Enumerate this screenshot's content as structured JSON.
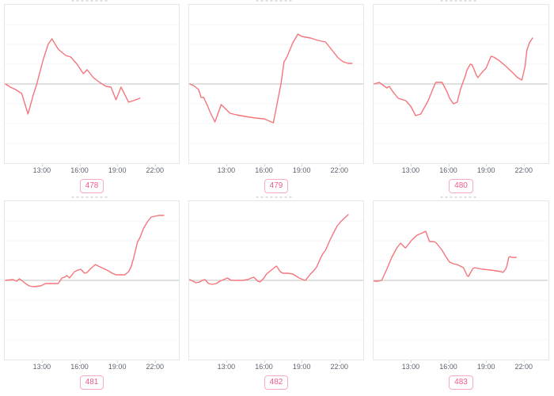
{
  "axis": {
    "tick_labels": [
      "13:00",
      "16:00",
      "19:00",
      "22:00"
    ],
    "tick_hours": [
      13,
      16,
      19,
      22
    ]
  },
  "style": {
    "background": "#ffffff",
    "line_color": "#f4757b",
    "zero_line_color": "#c2c2c2",
    "grid_color": "#f4f4f4",
    "border_color": "#e7e7e7",
    "tick_color": "#d6d6d6",
    "axis_label_color": "#5c6370",
    "badge_text_color": "#ee5a8b",
    "badge_border_color": "#f6abc5"
  },
  "chart_data": [
    {
      "type": "line",
      "label": "478",
      "legend": "none",
      "grid": "faint-horizontal",
      "baseline": 0,
      "xlim_hours": [
        10.05,
        23.9
      ],
      "ylim": [
        -100,
        100
      ],
      "xticks": [
        "13:00",
        "16:00",
        "19:00",
        "22:00"
      ],
      "y_scale": "relative (no y-axis labels visible)",
      "points": [
        [
          10.1,
          0
        ],
        [
          10.5,
          -4
        ],
        [
          10.9,
          -7
        ],
        [
          11.0,
          -8
        ],
        [
          11.4,
          -12
        ],
        [
          11.9,
          -38
        ],
        [
          12.3,
          -15
        ],
        [
          12.6,
          0
        ],
        [
          13.1,
          30
        ],
        [
          13.5,
          50
        ],
        [
          13.8,
          57
        ],
        [
          14.3,
          44
        ],
        [
          14.9,
          36
        ],
        [
          15.3,
          34
        ],
        [
          15.8,
          25
        ],
        [
          16.3,
          13
        ],
        [
          16.6,
          18
        ],
        [
          17.1,
          8
        ],
        [
          17.6,
          2
        ],
        [
          18.1,
          -3
        ],
        [
          18.5,
          -4
        ],
        [
          18.9,
          -20
        ],
        [
          19.3,
          -4
        ],
        [
          19.9,
          -23
        ],
        [
          20.3,
          -21
        ],
        [
          20.8,
          -18
        ]
      ]
    },
    {
      "type": "line",
      "label": "479",
      "legend": "none",
      "grid": "faint-horizontal",
      "baseline": 0,
      "xlim_hours": [
        10.05,
        23.9
      ],
      "ylim": [
        -100,
        100
      ],
      "xticks": [
        "13:00",
        "16:00",
        "19:00",
        "22:00"
      ],
      "y_scale": "relative (no y-axis labels visible)",
      "points": [
        [
          10.1,
          0
        ],
        [
          10.4,
          -2
        ],
        [
          10.8,
          -7
        ],
        [
          11.0,
          -17
        ],
        [
          11.2,
          -17
        ],
        [
          11.5,
          -27
        ],
        [
          11.7,
          -35
        ],
        [
          12.1,
          -48
        ],
        [
          12.6,
          -26
        ],
        [
          13.3,
          -37
        ],
        [
          13.8,
          -39
        ],
        [
          14.5,
          -41
        ],
        [
          15.3,
          -43
        ],
        [
          16.0,
          -44
        ],
        [
          16.75,
          -49
        ],
        [
          17.35,
          0
        ],
        [
          17.6,
          28
        ],
        [
          17.8,
          33
        ],
        [
          18.3,
          52
        ],
        [
          18.7,
          63
        ],
        [
          19.0,
          60
        ],
        [
          19.7,
          58
        ],
        [
          20.3,
          55
        ],
        [
          20.9,
          53
        ],
        [
          21.4,
          43
        ],
        [
          21.9,
          33
        ],
        [
          22.3,
          28
        ],
        [
          22.7,
          26
        ],
        [
          23.0,
          26
        ]
      ]
    },
    {
      "type": "line",
      "label": "480",
      "legend": "none",
      "grid": "faint-horizontal",
      "baseline": 0,
      "xlim_hours": [
        10.05,
        23.9
      ],
      "ylim": [
        -100,
        100
      ],
      "xticks": [
        "13:00",
        "16:00",
        "19:00",
        "22:00"
      ],
      "y_scale": "relative (no y-axis labels visible)",
      "points": [
        [
          10.1,
          0
        ],
        [
          10.5,
          2
        ],
        [
          11.1,
          -5
        ],
        [
          11.3,
          -3
        ],
        [
          11.6,
          -10
        ],
        [
          12.0,
          -18
        ],
        [
          12.6,
          -21
        ],
        [
          13.0,
          -28
        ],
        [
          13.4,
          -40
        ],
        [
          13.8,
          -38
        ],
        [
          14.4,
          -21
        ],
        [
          14.8,
          -5
        ],
        [
          15.0,
          2
        ],
        [
          15.5,
          2
        ],
        [
          15.9,
          -10
        ],
        [
          16.1,
          -18
        ],
        [
          16.4,
          -25
        ],
        [
          16.7,
          -23
        ],
        [
          17.0,
          -5
        ],
        [
          17.3,
          8
        ],
        [
          17.5,
          18
        ],
        [
          17.75,
          25
        ],
        [
          17.9,
          24
        ],
        [
          18.2,
          12
        ],
        [
          18.35,
          8
        ],
        [
          18.7,
          15
        ],
        [
          19.0,
          20
        ],
        [
          19.4,
          35
        ],
        [
          19.6,
          34
        ],
        [
          20.0,
          30
        ],
        [
          20.6,
          22
        ],
        [
          21.2,
          13
        ],
        [
          21.5,
          8
        ],
        [
          21.85,
          5
        ],
        [
          22.1,
          22
        ],
        [
          22.25,
          43
        ],
        [
          22.45,
          52
        ],
        [
          22.7,
          58
        ]
      ]
    },
    {
      "type": "line",
      "label": "481",
      "legend": "none",
      "grid": "faint-horizontal",
      "baseline": 0,
      "xlim_hours": [
        10.05,
        23.9
      ],
      "ylim": [
        -100,
        100
      ],
      "xticks": [
        "13:00",
        "16:00",
        "19:00",
        "22:00"
      ],
      "y_scale": "relative (no y-axis labels visible)",
      "points": [
        [
          10.1,
          0
        ],
        [
          10.7,
          1
        ],
        [
          11.0,
          -1
        ],
        [
          11.2,
          2
        ],
        [
          11.4,
          0
        ],
        [
          11.7,
          -4
        ],
        [
          12.0,
          -7
        ],
        [
          12.3,
          -8
        ],
        [
          12.9,
          -7
        ],
        [
          13.3,
          -4
        ],
        [
          13.8,
          -4
        ],
        [
          14.3,
          -4
        ],
        [
          14.6,
          3
        ],
        [
          14.8,
          4
        ],
        [
          15.0,
          6
        ],
        [
          15.2,
          3
        ],
        [
          15.6,
          11
        ],
        [
          15.9,
          13
        ],
        [
          16.1,
          14
        ],
        [
          16.4,
          9
        ],
        [
          16.6,
          10
        ],
        [
          16.9,
          15
        ],
        [
          17.25,
          20
        ],
        [
          17.5,
          18
        ],
        [
          17.9,
          15
        ],
        [
          18.3,
          12
        ],
        [
          18.6,
          9
        ],
        [
          18.9,
          7
        ],
        [
          19.3,
          7
        ],
        [
          19.6,
          7
        ],
        [
          19.9,
          11
        ],
        [
          20.1,
          17
        ],
        [
          20.3,
          28
        ],
        [
          20.6,
          48
        ],
        [
          20.8,
          54
        ],
        [
          21.1,
          66
        ],
        [
          21.4,
          74
        ],
        [
          21.7,
          80
        ],
        [
          22.0,
          81
        ],
        [
          22.3,
          82
        ],
        [
          22.7,
          82
        ]
      ]
    },
    {
      "type": "line",
      "label": "482",
      "legend": "none",
      "grid": "faint-horizontal",
      "baseline": 0,
      "xlim_hours": [
        10.05,
        23.9
      ],
      "ylim": [
        -100,
        100
      ],
      "xticks": [
        "13:00",
        "16:00",
        "19:00",
        "22:00"
      ],
      "y_scale": "relative (no y-axis labels visible)",
      "points": [
        [
          10.1,
          1
        ],
        [
          10.6,
          -3
        ],
        [
          10.9,
          -2
        ],
        [
          11.1,
          0
        ],
        [
          11.3,
          1
        ],
        [
          11.6,
          -4
        ],
        [
          11.9,
          -5
        ],
        [
          12.2,
          -4
        ],
        [
          12.5,
          -1
        ],
        [
          12.8,
          1
        ],
        [
          13.1,
          3
        ],
        [
          13.4,
          0
        ],
        [
          13.8,
          0
        ],
        [
          14.3,
          0
        ],
        [
          14.7,
          1
        ],
        [
          15.0,
          3
        ],
        [
          15.2,
          4
        ],
        [
          15.5,
          -1
        ],
        [
          15.7,
          -2
        ],
        [
          16.0,
          3
        ],
        [
          16.2,
          8
        ],
        [
          16.9,
          17
        ],
        [
          17.0,
          18
        ],
        [
          17.3,
          11
        ],
        [
          17.5,
          9
        ],
        [
          17.9,
          9
        ],
        [
          18.3,
          8
        ],
        [
          18.8,
          3
        ],
        [
          19.1,
          1
        ],
        [
          19.3,
          0
        ],
        [
          19.5,
          4
        ],
        [
          19.7,
          8
        ],
        [
          20.0,
          13
        ],
        [
          20.2,
          17
        ],
        [
          20.5,
          28
        ],
        [
          20.7,
          34
        ],
        [
          20.9,
          38
        ],
        [
          21.2,
          49
        ],
        [
          21.5,
          59
        ],
        [
          21.8,
          68
        ],
        [
          22.1,
          74
        ],
        [
          22.7,
          83
        ]
      ]
    },
    {
      "type": "line",
      "label": "483",
      "legend": "none",
      "grid": "faint-horizontal",
      "baseline": 0,
      "xlim_hours": [
        10.05,
        23.9
      ],
      "ylim": [
        -100,
        100
      ],
      "xticks": [
        "13:00",
        "16:00",
        "19:00",
        "22:00"
      ],
      "y_scale": "relative (no y-axis labels visible)",
      "points": [
        [
          10.1,
          -1
        ],
        [
          10.4,
          -1
        ],
        [
          10.7,
          0
        ],
        [
          11.1,
          14
        ],
        [
          11.5,
          29
        ],
        [
          11.9,
          41
        ],
        [
          12.2,
          47
        ],
        [
          12.5,
          42
        ],
        [
          12.6,
          41
        ],
        [
          13.1,
          51
        ],
        [
          13.5,
          57
        ],
        [
          13.8,
          59
        ],
        [
          14.2,
          62
        ],
        [
          14.5,
          49
        ],
        [
          14.8,
          49
        ],
        [
          15.0,
          48
        ],
        [
          15.5,
          38
        ],
        [
          15.8,
          30
        ],
        [
          16.1,
          23
        ],
        [
          16.4,
          21
        ],
        [
          16.7,
          20
        ],
        [
          17.2,
          16
        ],
        [
          17.5,
          6
        ],
        [
          17.6,
          5
        ],
        [
          17.95,
          15
        ],
        [
          18.1,
          16
        ],
        [
          18.75,
          14
        ],
        [
          19.4,
          13
        ],
        [
          19.8,
          12
        ],
        [
          20.2,
          11
        ],
        [
          20.35,
          10
        ],
        [
          20.55,
          14
        ],
        [
          20.65,
          18
        ],
        [
          20.8,
          29
        ],
        [
          20.9,
          30
        ],
        [
          21.1,
          29
        ],
        [
          21.4,
          29
        ]
      ]
    }
  ]
}
